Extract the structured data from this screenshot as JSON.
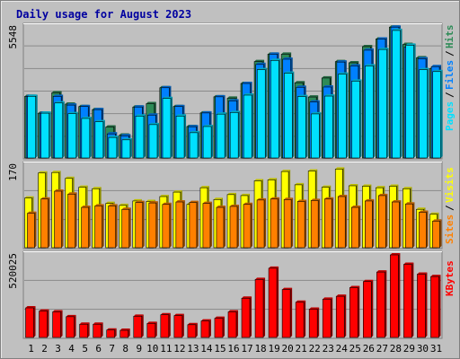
{
  "chart_data": {
    "type": "bar",
    "title": "Daily usage for August 2023",
    "categories": [
      "1",
      "2",
      "3",
      "4",
      "5",
      "6",
      "7",
      "8",
      "9",
      "10",
      "11",
      "12",
      "13",
      "14",
      "15",
      "16",
      "17",
      "18",
      "19",
      "20",
      "21",
      "22",
      "23",
      "24",
      "25",
      "26",
      "27",
      "28",
      "29",
      "30",
      "31"
    ],
    "weekend_days": [
      "5",
      "6",
      "12",
      "13",
      "19",
      "20",
      "26",
      "27"
    ],
    "panels": [
      {
        "name": "hits-files-pages",
        "ymax_label": "5548",
        "ymax": 5548,
        "legend": [
          "Pages",
          "/",
          "Files",
          "/",
          "Hits"
        ],
        "series": [
          {
            "name": "Hits",
            "color": "#2e8b57",
            "values": [
              2630,
              1920,
              2780,
              2300,
              2200,
              2070,
              1340,
              1000,
              2180,
              2320,
              2990,
              2200,
              1360,
              1930,
              2610,
              2550,
              3170,
              4090,
              4400,
              4400,
              3200,
              2600,
              3400,
              4090,
              4040,
              4720,
              5040,
              5540,
              4810,
              4250,
              3800
            ]
          },
          {
            "name": "Files",
            "color": "#0080ff",
            "values": [
              2630,
              1920,
              2630,
              2260,
              2200,
              2070,
              1050,
              970,
              2180,
              1840,
              2990,
              2200,
              1350,
              1930,
              2610,
              2440,
              3170,
              3970,
              4400,
              4190,
              3010,
              2390,
              3020,
              4070,
              3910,
              4570,
              5040,
              5540,
              4700,
              4210,
              3880
            ]
          },
          {
            "name": "Pages",
            "color": "#00e0ff",
            "values": [
              2630,
              1920,
              2350,
              1900,
              1700,
              1560,
              900,
              800,
              1800,
              1440,
              2540,
              1800,
              1100,
              1360,
              1880,
              1950,
              2680,
              3750,
              4140,
              3600,
              2620,
              1890,
              2640,
              3560,
              3270,
              3910,
              4600,
              5400,
              4780,
              3750,
              3670
            ]
          }
        ]
      },
      {
        "name": "visits-sites",
        "ymax_label": "170",
        "ymax": 170,
        "legend": [
          "Sites",
          "/",
          "Visits"
        ],
        "series": [
          {
            "name": "Visits",
            "color": "#ffff00",
            "values": [
              103,
              154,
              155,
              143,
              125,
              122,
              92,
              88,
              97,
              96,
              106,
              115,
              90,
              124,
              100,
              110,
              108,
              138,
              140,
              157,
              130,
              158,
              125,
              162,
              128,
              127,
              124,
              127,
              122,
              80,
              70
            ]
          },
          {
            "name": "Sites",
            "color": "#ff8000",
            "values": [
              72,
              101,
              117,
              111,
              84,
              87,
              87,
              80,
              94,
              93,
              90,
              95,
              94,
              92,
              84,
              86,
              90,
              99,
              101,
              100,
              96,
              98,
              101,
              106,
              84,
              97,
              108,
              95,
              91,
              74,
              56
            ]
          }
        ]
      },
      {
        "name": "kbytes",
        "ymax_label": "520025",
        "ymax": 520025,
        "legend": [
          "KBytes"
        ],
        "series": [
          {
            "name": "KBytes",
            "color": "#ff0000",
            "values": [
              190000,
              170000,
              165000,
              135000,
              88000,
              88000,
              52000,
              50000,
              138000,
              93000,
              147000,
              142000,
              85000,
              108000,
              125000,
              165000,
              250000,
              367000,
              437000,
              304000,
              225000,
              182000,
              244000,
              262000,
              316000,
              354000,
              413000,
              520025,
              461000,
              400000,
              385000
            ]
          }
        ]
      }
    ],
    "colors": {
      "background": "#c0c0c0",
      "title": "#0000a0",
      "hits": "#2e8b57",
      "files": "#0080ff",
      "pages": "#00e0ff",
      "visits": "#ffff00",
      "sites": "#ff8000",
      "kbytes": "#ff0000",
      "weekend_label": "#008040",
      "gridline": "#8a8a8a"
    }
  }
}
